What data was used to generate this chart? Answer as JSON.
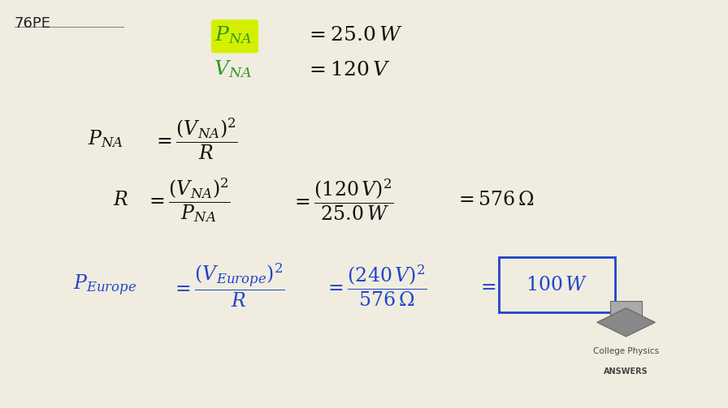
{
  "background_color": "#f0ede0",
  "title_text": "76PE",
  "title_color": "#222222",
  "title_fontsize": 13,
  "highlight_color": "#d4f000",
  "green_color": "#2a9a2a",
  "blue_color": "#2244cc",
  "black_color": "#111111",
  "logo_text1": "College Physics",
  "logo_text2": "ANSWERS"
}
